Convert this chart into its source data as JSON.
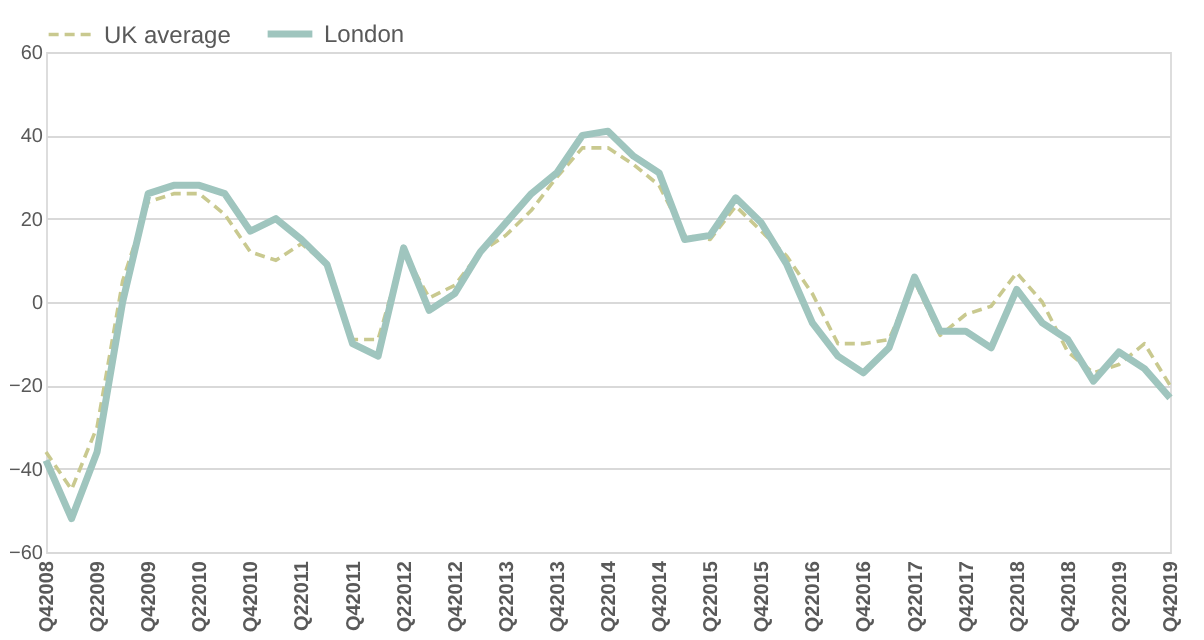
{
  "chart_data": {
    "type": "line",
    "categories": [
      "Q42008",
      null,
      "Q22009",
      null,
      "Q42009",
      null,
      "Q22010",
      null,
      "Q42010",
      null,
      "Q22011",
      null,
      "Q42011",
      null,
      "Q22012",
      null,
      "Q42012",
      null,
      "Q22013",
      null,
      "Q42013",
      null,
      "Q22014",
      null,
      "Q42014",
      null,
      "Q22015",
      null,
      "Q42015",
      null,
      "Q22016",
      null,
      "Q42016",
      null,
      "Q22017",
      null,
      "Q42017",
      null,
      "Q22018",
      null,
      "Q42018",
      null,
      "Q22019",
      null,
      "Q42019"
    ],
    "series": [
      {
        "name": "UK average",
        "color": "#c9c98f",
        "line_style": "dashed",
        "values": [
          -36,
          -45,
          -30,
          5,
          24,
          26,
          26,
          21,
          12,
          10,
          14,
          9,
          -9,
          -9,
          12,
          1,
          4,
          12,
          16,
          22,
          30,
          37,
          37,
          33,
          28,
          16,
          15,
          23,
          17,
          11,
          2,
          -10,
          -10,
          -9,
          5,
          -8,
          -3,
          -1,
          7,
          0,
          -12,
          -17,
          -15,
          -10,
          -20
        ]
      },
      {
        "name": "London",
        "color": "#9fc5be",
        "line_style": "solid",
        "values": [
          -38,
          -52,
          -36,
          0,
          26,
          28,
          28,
          26,
          17,
          20,
          15,
          9,
          -10,
          -13,
          13,
          -2,
          2,
          12,
          19,
          26,
          31,
          40,
          41,
          35,
          31,
          15,
          16,
          25,
          19,
          9,
          -5,
          -13,
          -17,
          -11,
          6,
          -7,
          -7,
          -11,
          3,
          -5,
          -9,
          -19,
          -12,
          -16,
          -23
        ]
      }
    ],
    "ylim": [
      -60,
      60
    ],
    "yticks": [
      -60,
      -40,
      -20,
      0,
      20,
      40,
      60
    ],
    "grid": "y",
    "legend": "top"
  }
}
